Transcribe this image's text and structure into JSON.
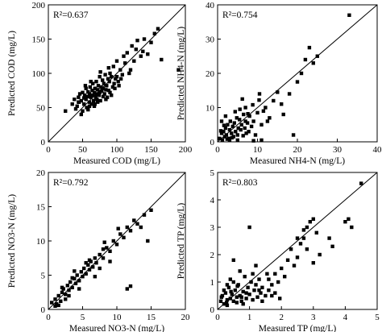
{
  "chart_data": [
    {
      "type": "scatter",
      "xlabel": "Measured COD (mg/L)",
      "ylabel": "Predicted COD (mg/L)",
      "r2": "R²=0.637",
      "xlim": [
        0,
        200
      ],
      "ylim": [
        0,
        200
      ],
      "xticks": [
        "0",
        "50",
        "100",
        "150",
        "200"
      ],
      "yticks": [
        "0",
        "50",
        "100",
        "150",
        "200"
      ],
      "reference_line": "y = x",
      "grid": false,
      "points": [
        [
          25,
          45
        ],
        [
          35,
          55
        ],
        [
          38,
          62
        ],
        [
          40,
          48
        ],
        [
          42,
          52
        ],
        [
          44,
          65
        ],
        [
          45,
          58
        ],
        [
          46,
          70
        ],
        [
          48,
          60
        ],
        [
          50,
          45
        ],
        [
          50,
          72
        ],
        [
          52,
          55
        ],
        [
          53,
          68
        ],
        [
          55,
          62
        ],
        [
          55,
          78
        ],
        [
          56,
          50
        ],
        [
          57,
          66
        ],
        [
          58,
          73
        ],
        [
          60,
          58
        ],
        [
          60,
          70
        ],
        [
          61,
          80
        ],
        [
          62,
          65
        ],
        [
          63,
          55
        ],
        [
          64,
          75
        ],
        [
          65,
          68
        ],
        [
          65,
          85
        ],
        [
          66,
          60
        ],
        [
          67,
          72
        ],
        [
          68,
          78
        ],
        [
          69,
          65
        ],
        [
          70,
          70
        ],
        [
          70,
          88
        ],
        [
          71,
          62
        ],
        [
          72,
          76
        ],
        [
          73,
          82
        ],
        [
          74,
          68
        ],
        [
          75,
          72
        ],
        [
          75,
          95
        ],
        [
          76,
          60
        ],
        [
          77,
          80
        ],
        [
          78,
          74
        ],
        [
          79,
          90
        ],
        [
          80,
          66
        ],
        [
          80,
          78
        ],
        [
          81,
          85
        ],
        [
          82,
          70
        ],
        [
          83,
          98
        ],
        [
          84,
          76
        ],
        [
          85,
          82
        ],
        [
          86,
          65
        ],
        [
          87,
          92
        ],
        [
          88,
          75
        ],
        [
          89,
          88
        ],
        [
          90,
          100
        ],
        [
          90,
          72
        ],
        [
          92,
          95
        ],
        [
          94,
          80
        ],
        [
          95,
          110
        ],
        [
          96,
          85
        ],
        [
          98,
          92
        ],
        [
          100,
          118
        ],
        [
          100,
          95
        ],
        [
          102,
          88
        ],
        [
          105,
          105
        ],
        [
          108,
          98
        ],
        [
          110,
          125
        ],
        [
          112,
          115
        ],
        [
          115,
          130
        ],
        [
          120,
          105
        ],
        [
          122,
          140
        ],
        [
          125,
          118
        ],
        [
          128,
          135
        ],
        [
          130,
          148
        ],
        [
          135,
          125
        ],
        [
          140,
          150
        ],
        [
          145,
          128
        ],
        [
          150,
          145
        ],
        [
          155,
          158
        ],
        [
          160,
          165
        ],
        [
          165,
          120
        ],
        [
          190,
          105
        ],
        [
          138,
          132
        ],
        [
          118,
          100
        ],
        [
          106,
          92
        ],
        [
          48,
          40
        ],
        [
          58,
          47
        ],
        [
          67,
          52
        ],
        [
          72,
          58
        ],
        [
          84,
          62
        ],
        [
          92,
          68
        ],
        [
          97,
          78
        ],
        [
          103,
          82
        ],
        [
          54,
          82
        ],
        [
          62,
          88
        ],
        [
          76,
          102
        ],
        [
          88,
          108
        ],
        [
          44,
          58
        ],
        [
          52,
          64
        ],
        [
          60,
          52
        ],
        [
          68,
          55
        ]
      ]
    },
    {
      "type": "scatter",
      "xlabel": "Measured NH4-N (mg/L)",
      "ylabel": "Predicted NH4-N (mg/L)",
      "r2": "R²=0.754",
      "xlim": [
        0,
        40
      ],
      "ylim": [
        0,
        40
      ],
      "xticks": [
        "0",
        "10",
        "20",
        "30",
        "40"
      ],
      "yticks": [
        "0",
        "10",
        "20",
        "30",
        "40"
      ],
      "reference_line": "y = x",
      "grid": false,
      "points": [
        [
          0.5,
          1
        ],
        [
          1,
          2.5
        ],
        [
          1.2,
          0.5
        ],
        [
          1.5,
          3
        ],
        [
          1.8,
          1.5
        ],
        [
          2,
          4
        ],
        [
          2.2,
          2
        ],
        [
          2.5,
          5
        ],
        [
          2.8,
          1
        ],
        [
          3,
          3.5
        ],
        [
          3.2,
          6
        ],
        [
          3.5,
          2.5
        ],
        [
          3.8,
          4.5
        ],
        [
          4,
          1.5
        ],
        [
          4.2,
          5.5
        ],
        [
          4.5,
          3
        ],
        [
          4.8,
          7
        ],
        [
          5,
          2
        ],
        [
          5.2,
          4
        ],
        [
          5.5,
          6.5
        ],
        [
          5.8,
          3.5
        ],
        [
          6,
          5
        ],
        [
          6.2,
          12.5
        ],
        [
          6.5,
          8
        ],
        [
          6.8,
          4
        ],
        [
          7,
          6
        ],
        [
          7.2,
          2.5
        ],
        [
          7.5,
          5.5
        ],
        [
          7.8,
          3
        ],
        [
          8,
          7.5
        ],
        [
          8.5,
          4.5
        ],
        [
          9,
          6
        ],
        [
          9.5,
          2
        ],
        [
          10,
          8.5
        ],
        [
          10.5,
          14
        ],
        [
          11,
          5
        ],
        [
          11.5,
          9
        ],
        [
          12,
          10
        ],
        [
          13,
          7
        ],
        [
          14,
          12
        ],
        [
          15,
          14.5
        ],
        [
          16,
          11
        ],
        [
          18,
          14
        ],
        [
          19,
          2
        ],
        [
          20,
          17.5
        ],
        [
          21,
          20
        ],
        [
          22,
          24
        ],
        [
          23,
          27.5
        ],
        [
          24,
          23
        ],
        [
          25,
          25
        ],
        [
          33,
          37
        ],
        [
          1,
          6
        ],
        [
          2,
          7.5
        ],
        [
          3,
          0.5
        ],
        [
          5,
          0.5
        ],
        [
          7,
          10
        ],
        [
          9,
          0.3
        ],
        [
          11,
          0.5
        ],
        [
          0.8,
          3.2
        ],
        [
          1.6,
          4.8
        ],
        [
          2.4,
          0.8
        ],
        [
          3.6,
          1.2
        ],
        [
          4.4,
          8.8
        ],
        [
          5.6,
          9.5
        ],
        [
          6.4,
          1.8
        ],
        [
          7.6,
          8.2
        ],
        [
          8.8,
          10.8
        ],
        [
          10.4,
          12.2
        ],
        [
          12.5,
          6
        ],
        [
          16.5,
          8
        ]
      ]
    },
    {
      "type": "scatter",
      "xlabel": "Measured NO3-N (mg/L)",
      "ylabel": "Predicted NO3-N (mg/L)",
      "r2": "R²=0.792",
      "xlim": [
        0,
        20
      ],
      "ylim": [
        0,
        20
      ],
      "xticks": [
        "0",
        "5",
        "10",
        "15",
        "20"
      ],
      "yticks": [
        "0",
        "5",
        "10",
        "15",
        "20"
      ],
      "reference_line": "y = x",
      "grid": false,
      "points": [
        [
          0.5,
          1
        ],
        [
          1,
          1.5
        ],
        [
          1.2,
          0.8
        ],
        [
          1.5,
          2
        ],
        [
          1.8,
          1.2
        ],
        [
          2,
          2.5
        ],
        [
          2.2,
          3
        ],
        [
          2.5,
          2.2
        ],
        [
          2.8,
          3.5
        ],
        [
          3,
          2.8
        ],
        [
          3.2,
          4
        ],
        [
          3.5,
          3.2
        ],
        [
          3.8,
          4.5
        ],
        [
          4,
          3.8
        ],
        [
          4.2,
          5
        ],
        [
          4.5,
          4.2
        ],
        [
          4.8,
          5.5
        ],
        [
          5,
          4.8
        ],
        [
          5.2,
          6
        ],
        [
          5.5,
          5.2
        ],
        [
          5.8,
          6.5
        ],
        [
          6,
          5.8
        ],
        [
          6.2,
          7
        ],
        [
          6.5,
          6.2
        ],
        [
          6.8,
          7.5
        ],
        [
          7,
          6.8
        ],
        [
          7.5,
          8
        ],
        [
          8,
          7.5
        ],
        [
          8.5,
          9
        ],
        [
          9,
          8.5
        ],
        [
          9.5,
          10
        ],
        [
          10,
          9.5
        ],
        [
          10.5,
          11
        ],
        [
          11,
          10.5
        ],
        [
          11.5,
          12
        ],
        [
          12,
          11.5
        ],
        [
          12.5,
          13
        ],
        [
          13,
          12.5
        ],
        [
          14,
          13.8
        ],
        [
          15,
          14.5
        ],
        [
          11.5,
          3
        ],
        [
          12,
          3.4
        ],
        [
          14.5,
          10
        ],
        [
          10.2,
          11.8
        ],
        [
          13.5,
          12
        ],
        [
          8.2,
          9.8
        ],
        [
          3.8,
          5.6
        ],
        [
          2.5,
          1.5
        ],
        [
          1.5,
          0.6
        ],
        [
          6.8,
          4.8
        ],
        [
          9,
          7
        ],
        [
          3,
          2
        ],
        [
          4.5,
          3
        ],
        [
          7.5,
          6
        ],
        [
          5.5,
          6.8
        ],
        [
          2,
          3.2
        ],
        [
          1,
          0.5
        ],
        [
          3.5,
          4.6
        ],
        [
          6,
          7.2
        ],
        [
          8,
          8.8
        ]
      ]
    },
    {
      "type": "scatter",
      "xlabel": "Measured TP (mg/L)",
      "ylabel": "Predicted TP (mg/L)",
      "r2": "R²=0.803",
      "xlim": [
        0,
        5
      ],
      "ylim": [
        0,
        5
      ],
      "xticks": [
        "0",
        "1",
        "2",
        "3",
        "4",
        "5"
      ],
      "yticks": [
        "0",
        "1",
        "2",
        "3",
        "4",
        "5"
      ],
      "reference_line": "y = x",
      "grid": false,
      "points": [
        [
          0.1,
          0.3
        ],
        [
          0.15,
          0.5
        ],
        [
          0.2,
          0.2
        ],
        [
          0.25,
          0.6
        ],
        [
          0.3,
          0.35
        ],
        [
          0.35,
          0.8
        ],
        [
          0.4,
          0.4
        ],
        [
          0.45,
          0.55
        ],
        [
          0.5,
          0.3
        ],
        [
          0.55,
          0.7
        ],
        [
          0.6,
          0.45
        ],
        [
          0.65,
          0.9
        ],
        [
          0.7,
          0.5
        ],
        [
          0.75,
          0.3
        ],
        [
          0.8,
          0.65
        ],
        [
          0.85,
          1.2
        ],
        [
          0.9,
          0.4
        ],
        [
          0.95,
          0.8
        ],
        [
          1.0,
          0.55
        ],
        [
          1.05,
          1.0
        ],
        [
          1.1,
          0.35
        ],
        [
          1.15,
          0.7
        ],
        [
          1.2,
          0.9
        ],
        [
          1.25,
          0.45
        ],
        [
          1.3,
          1.1
        ],
        [
          1.35,
          0.6
        ],
        [
          1.4,
          0.8
        ],
        [
          1.5,
          0.5
        ],
        [
          1.55,
          1.3
        ],
        [
          1.6,
          0.7
        ],
        [
          1.7,
          0.9
        ],
        [
          1.8,
          0.6
        ],
        [
          1.9,
          1.0
        ],
        [
          1.95,
          0.4
        ],
        [
          1.0,
          3.0
        ],
        [
          0.5,
          1.8
        ],
        [
          0.7,
          1.4
        ],
        [
          1.2,
          1.6
        ],
        [
          2.0,
          1.5
        ],
        [
          2.2,
          1.8
        ],
        [
          2.3,
          2.2
        ],
        [
          2.4,
          1.6
        ],
        [
          2.5,
          2.6
        ],
        [
          2.6,
          2.4
        ],
        [
          2.7,
          2.9
        ],
        [
          2.8,
          2.2
        ],
        [
          2.8,
          3.0
        ],
        [
          2.9,
          3.2
        ],
        [
          3.0,
          3.3
        ],
        [
          3.0,
          1.7
        ],
        [
          3.2,
          2.0
        ],
        [
          3.5,
          2.6
        ],
        [
          3.6,
          2.3
        ],
        [
          4.0,
          3.2
        ],
        [
          4.1,
          3.3
        ],
        [
          4.2,
          3.0
        ],
        [
          4.5,
          4.6
        ],
        [
          0.3,
          0.9
        ],
        [
          0.4,
          1.1
        ],
        [
          0.6,
          0.25
        ],
        [
          0.2,
          0.7
        ],
        [
          0.8,
          0.2
        ],
        [
          1.1,
          1.3
        ],
        [
          1.4,
          0.3
        ],
        [
          1.6,
          1.1
        ],
        [
          1.8,
          1.3
        ],
        [
          0.3,
          0.15
        ],
        [
          0.5,
          1.0
        ],
        [
          0.9,
          0.6
        ],
        [
          1.3,
          0.7
        ],
        [
          1.7,
          0.5
        ],
        [
          2.1,
          1.2
        ],
        [
          2.5,
          1.9
        ],
        [
          2.7,
          2.6
        ],
        [
          3.1,
          2.8
        ],
        [
          0.12,
          0.45
        ],
        [
          0.28,
          0.25
        ],
        [
          0.42,
          0.65
        ],
        [
          0.62,
          0.85
        ],
        [
          0.75,
          0.45
        ]
      ]
    }
  ]
}
